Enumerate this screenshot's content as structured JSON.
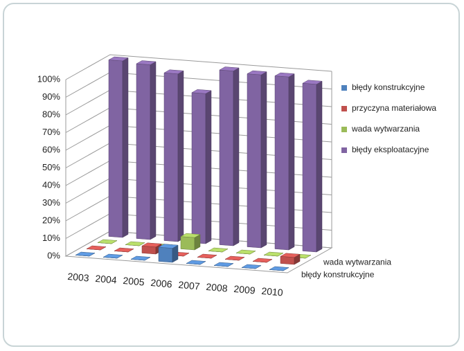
{
  "chart_data": {
    "type": "bar3d",
    "categories": [
      "2003",
      "2004",
      "2005",
      "2006",
      "2007",
      "2008",
      "2009",
      "2010"
    ],
    "series": [
      {
        "name": "błędy konstrukcyjne",
        "color": "#4f81bd",
        "values": [
          0,
          0,
          0,
          8,
          0,
          0,
          0,
          0
        ]
      },
      {
        "name": "przyczyna materiałowa",
        "color": "#c0504d",
        "values": [
          0,
          0,
          4,
          0,
          0,
          0,
          0,
          4
        ]
      },
      {
        "name": "wada wytwarzania",
        "color": "#9bbb59",
        "values": [
          0,
          0,
          0,
          7,
          0,
          0,
          0,
          0
        ]
      },
      {
        "name": "błędy eksploatacyjne",
        "color": "#8064a2",
        "values": [
          100,
          99,
          95,
          85,
          99,
          98,
          98,
          95
        ]
      }
    ],
    "ylim": [
      0,
      100
    ],
    "yticks": [
      {
        "value": 0,
        "label": "0%"
      },
      {
        "value": 10,
        "label": "10%"
      },
      {
        "value": 20,
        "label": "20%"
      },
      {
        "value": 30,
        "label": "30%"
      },
      {
        "value": 40,
        "label": "40%"
      },
      {
        "value": 50,
        "label": "50%"
      },
      {
        "value": 60,
        "label": "60%"
      },
      {
        "value": 70,
        "label": "70%"
      },
      {
        "value": 80,
        "label": "80%"
      },
      {
        "value": 90,
        "label": "90%"
      },
      {
        "value": 100,
        "label": "100%"
      }
    ],
    "grid": true,
    "legend": "right"
  }
}
